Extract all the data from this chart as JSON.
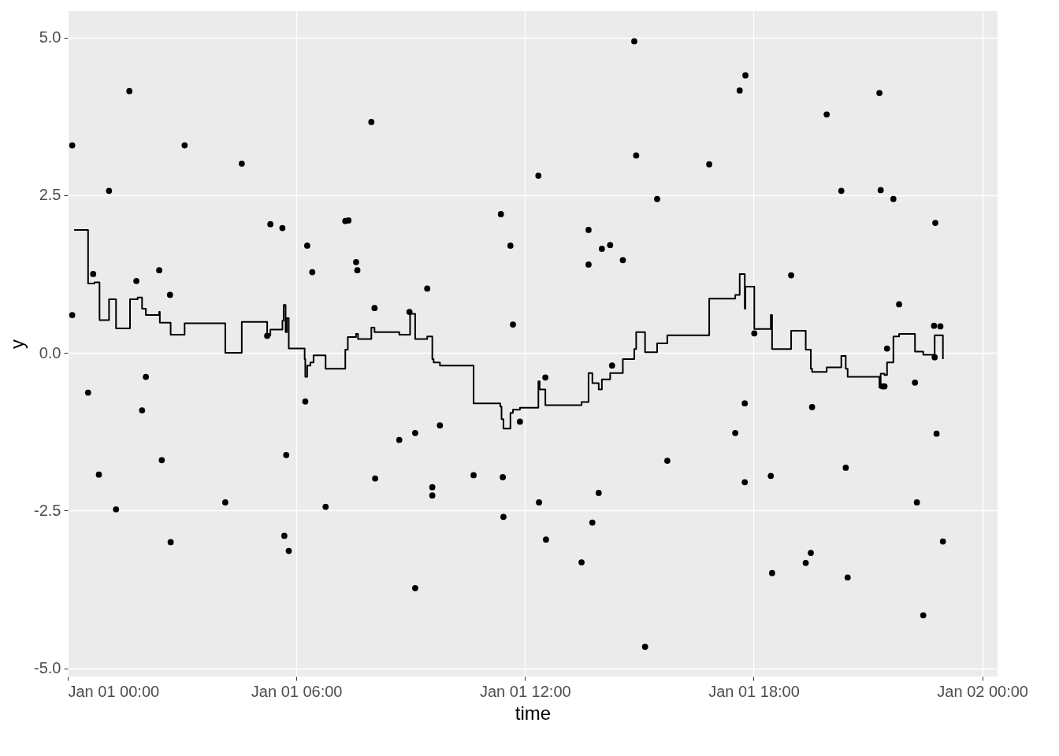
{
  "chart_data": {
    "type": "scatter",
    "xlabel": "time",
    "ylabel": "y",
    "grid": true,
    "xlim": [
      "--01-01T00:00",
      "--01-02T00:24"
    ],
    "ylim": [
      -5.13,
      5.42
    ],
    "xticks": [
      {
        "value": "--01-01T00:00",
        "label": "Jan 01 00:00"
      },
      {
        "value": "--01-01T06:00",
        "label": "Jan 01 06:00"
      },
      {
        "value": "--01-01T12:00",
        "label": "Jan 01 12:00"
      },
      {
        "value": "--01-01T18:00",
        "label": "Jan 01 18:00"
      },
      {
        "value": "--01-02T00:00",
        "label": "Jan 02 00:00"
      }
    ],
    "yticks": [
      {
        "value": -5,
        "label": "-5.0"
      },
      {
        "value": -2.5,
        "label": "-2.5"
      },
      {
        "value": 0,
        "label": "0.0"
      },
      {
        "value": 2.5,
        "label": "2.5"
      },
      {
        "value": 5,
        "label": "5.0"
      }
    ],
    "series": [
      {
        "color": "#000000",
        "marker": "circle",
        "x": [
          "--01-01T00:07",
          "--01-01T00:07",
          "--01-01T00:32",
          "--01-01T00:40",
          "--01-01T00:49",
          "--01-01T01:05",
          "--01-01T01:16",
          "--01-01T01:37",
          "--01-01T01:48",
          "--01-01T01:57",
          "--01-01T02:03",
          "--01-01T02:24",
          "--01-01T02:28",
          "--01-01T02:41",
          "--01-01T02:42",
          "--01-01T03:04",
          "--01-01T04:08",
          "--01-01T04:34",
          "--01-01T05:14",
          "--01-01T05:19",
          "--01-01T05:38",
          "--01-01T05:41",
          "--01-01T05:44",
          "--01-01T05:48",
          "--01-01T06:14",
          "--01-01T06:17",
          "--01-01T06:25",
          "--01-01T06:46",
          "--01-01T07:17",
          "--01-01T07:22",
          "--01-01T07:34",
          "--01-01T07:36",
          "--01-01T07:58",
          "--01-01T08:03",
          "--01-01T08:04",
          "--01-01T08:42",
          "--01-01T08:58",
          "--01-01T09:07",
          "--01-01T09:07",
          "--01-01T09:26",
          "--01-01T09:34",
          "--01-01T09:34",
          "--01-01T09:46",
          "--01-01T10:39",
          "--01-01T11:22",
          "--01-01T11:25",
          "--01-01T11:26",
          "--01-01T11:37",
          "--01-01T11:41",
          "--01-01T11:52",
          "--01-01T12:21",
          "--01-01T12:22",
          "--01-01T12:32",
          "--01-01T12:33",
          "--01-01T13:29",
          "--01-01T13:40",
          "--01-01T13:40",
          "--01-01T13:46",
          "--01-01T13:56",
          "--01-01T14:01",
          "--01-01T14:14",
          "--01-01T14:17",
          "--01-01T14:34",
          "--01-01T14:52",
          "--01-01T14:55",
          "--01-01T15:09",
          "--01-01T15:28",
          "--01-01T15:44",
          "--01-01T16:50",
          "--01-01T17:31",
          "--01-01T17:38",
          "--01-01T17:46",
          "--01-01T17:46",
          "--01-01T17:47",
          "--01-01T18:01",
          "--01-01T18:27",
          "--01-01T18:29",
          "--01-01T18:59",
          "--01-01T19:22",
          "--01-01T19:30",
          "--01-01T19:32",
          "--01-01T19:55",
          "--01-01T20:18",
          "--01-01T20:25",
          "--01-01T20:28",
          "--01-01T21:18",
          "--01-01T21:20",
          "--01-01T21:23",
          "--01-01T21:26",
          "--01-01T21:30",
          "--01-01T21:40",
          "--01-01T21:49",
          "--01-01T22:14",
          "--01-01T22:17",
          "--01-01T22:27",
          "--01-01T22:44",
          "--01-01T22:45",
          "--01-01T22:46",
          "--01-01T22:48",
          "--01-01T22:54",
          "--01-01T22:58"
        ],
        "values": [
          0.6,
          3.29,
          -0.63,
          1.25,
          -1.93,
          2.57,
          -2.48,
          4.15,
          1.14,
          -0.91,
          -0.38,
          1.31,
          -1.7,
          0.92,
          -3.0,
          3.29,
          -2.37,
          3.0,
          0.27,
          2.04,
          1.98,
          -2.9,
          -1.62,
          -3.14,
          -0.77,
          1.7,
          1.28,
          -2.44,
          2.09,
          2.1,
          1.44,
          1.31,
          3.66,
          0.71,
          -1.99,
          -1.38,
          0.65,
          -1.27,
          -3.73,
          1.02,
          -2.13,
          -2.26,
          -1.15,
          -1.94,
          2.2,
          -1.97,
          -2.6,
          1.7,
          0.45,
          -1.09,
          2.81,
          -2.37,
          -0.39,
          -2.96,
          -3.32,
          1.95,
          1.4,
          -2.69,
          -2.22,
          1.65,
          1.71,
          -0.2,
          1.47,
          4.94,
          3.13,
          -4.66,
          2.44,
          -1.71,
          2.99,
          -1.27,
          4.16,
          -0.8,
          -2.05,
          4.4,
          0.31,
          -1.95,
          -3.49,
          1.23,
          -3.33,
          -3.17,
          -0.86,
          3.78,
          2.57,
          -1.82,
          -3.56,
          4.12,
          2.58,
          -0.53,
          -0.53,
          0.07,
          2.44,
          0.77,
          -0.47,
          -2.37,
          -4.16,
          0.43,
          -0.07,
          2.06,
          -1.28,
          0.42,
          -2.99
        ]
      },
      {
        "type": "step",
        "marker": "none",
        "color": "#000000",
        "x": [
          "--01-01T00:10",
          "--01-01T00:32",
          "--01-01T00:42",
          "--01-01T00:50",
          "--01-01T01:05",
          "--01-01T01:16",
          "--01-01T01:38",
          "--01-01T01:50",
          "--01-01T01:57",
          "--01-01T02:03",
          "--01-01T02:24",
          "--01-01T02:25",
          "--01-01T02:42",
          "--01-01T03:04",
          "--01-01T04:08",
          "--01-01T04:34",
          "--01-01T05:14",
          "--01-01T05:19",
          "--01-01T05:38",
          "--01-01T05:40",
          "--01-01T05:43",
          "--01-01T05:45",
          "--01-01T05:48",
          "--01-01T06:13",
          "--01-01T06:14",
          "--01-01T06:17",
          "--01-01T06:22",
          "--01-01T06:27",
          "--01-01T06:46",
          "--01-01T07:17",
          "--01-01T07:21",
          "--01-01T07:34",
          "--01-01T07:37",
          "--01-01T07:58",
          "--01-01T08:03",
          "--01-01T08:42",
          "--01-01T08:59",
          "--01-01T09:07",
          "--01-01T09:26",
          "--01-01T09:34",
          "--01-01T09:36",
          "--01-01T09:46",
          "--01-01T10:39",
          "--01-01T11:21",
          "--01-01T11:23",
          "--01-01T11:26",
          "--01-01T11:37",
          "--01-01T11:41",
          "--01-01T11:52",
          "--01-01T12:21",
          "--01-01T12:23",
          "--01-01T12:32",
          "--01-01T13:29",
          "--01-01T13:40",
          "--01-01T13:46",
          "--01-01T13:56",
          "--01-01T14:01",
          "--01-01T14:14",
          "--01-01T14:34",
          "--01-01T14:52",
          "--01-01T14:55",
          "--01-01T15:09",
          "--01-01T15:28",
          "--01-01T15:44",
          "--01-01T16:50",
          "--01-01T17:31",
          "--01-01T17:38",
          "--01-01T17:46",
          "--01-01T17:47",
          "--01-01T18:01",
          "--01-01T18:27",
          "--01-01T18:29",
          "--01-01T18:59",
          "--01-01T19:22",
          "--01-01T19:30",
          "--01-01T19:32",
          "--01-01T19:55",
          "--01-01T20:18",
          "--01-01T20:25",
          "--01-01T20:28",
          "--01-01T21:18",
          "--01-01T21:20",
          "--01-01T21:26",
          "--01-01T21:30",
          "--01-01T21:40",
          "--01-01T21:49",
          "--01-01T22:14",
          "--01-01T22:27",
          "--01-01T22:44",
          "--01-01T22:45",
          "--01-01T22:58"
        ],
        "values": [
          1.95,
          1.1,
          1.12,
          0.52,
          0.85,
          0.39,
          0.85,
          0.88,
          0.7,
          0.6,
          0.65,
          0.48,
          0.29,
          0.47,
          0.0,
          0.49,
          0.28,
          0.37,
          0.51,
          0.76,
          0.33,
          0.55,
          0.07,
          -0.1,
          -0.38,
          -0.2,
          -0.15,
          -0.04,
          -0.25,
          0.05,
          0.25,
          0.3,
          0.22,
          0.4,
          0.33,
          0.29,
          0.62,
          0.22,
          0.26,
          -0.1,
          -0.15,
          -0.2,
          -0.8,
          -0.85,
          -1.05,
          -1.2,
          -0.95,
          -0.9,
          -0.87,
          -0.45,
          -0.58,
          -0.83,
          -0.78,
          -0.32,
          -0.48,
          -0.58,
          -0.42,
          -0.32,
          -0.1,
          0.06,
          0.33,
          0.01,
          0.15,
          0.28,
          0.86,
          0.92,
          1.25,
          0.7,
          1.05,
          0.38,
          0.6,
          0.06,
          0.35,
          0.05,
          -0.25,
          -0.3,
          -0.23,
          -0.05,
          -0.25,
          -0.38,
          -0.55,
          -0.33,
          -0.35,
          -0.15,
          0.26,
          0.3,
          0.02,
          -0.03,
          -0.08,
          0.28,
          -0.1
        ]
      }
    ]
  }
}
